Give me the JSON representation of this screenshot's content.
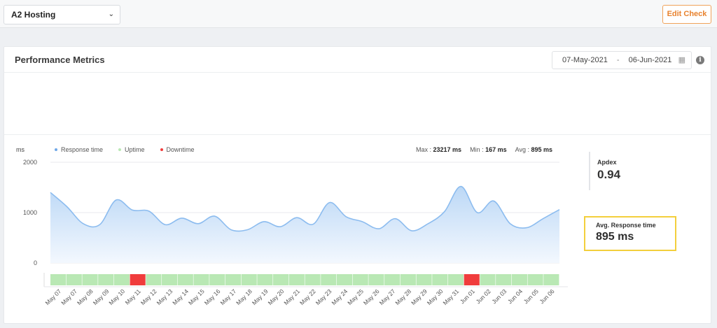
{
  "topbar": {
    "site_select": {
      "value": "A2 Hosting",
      "icon": "chevron-down-icon"
    },
    "edit_check_label": "Edit Check"
  },
  "card": {
    "title": "Performance Metrics",
    "date_range": {
      "start": "07-May-2021",
      "separator": "-",
      "end": "06-Jun-2021"
    }
  },
  "legend": {
    "units": "ms",
    "items": [
      {
        "label": "Response time",
        "color": "#6fa8e8"
      },
      {
        "label": "Uptime",
        "color": "#b9e8b4"
      },
      {
        "label": "Downtime",
        "color": "#f03c3c"
      }
    ]
  },
  "stats": {
    "max_label": "Max :",
    "max_value": "23217 ms",
    "min_label": "Min :",
    "min_value": "167 ms",
    "avg_label": "Avg :",
    "avg_value": "895 ms"
  },
  "side": {
    "apdex_label": "Apdex",
    "apdex_value": "0.94",
    "avg_label": "Avg. Response time",
    "avg_value": "895 ms"
  },
  "chart_data": {
    "type": "area",
    "ylim": [
      0,
      2000
    ],
    "yticks": [
      0,
      1000,
      2000
    ],
    "categories": [
      "May 07",
      "May 07",
      "May 08",
      "May 09",
      "May 10",
      "May 11",
      "May 12",
      "May 13",
      "May 14",
      "May 15",
      "May 16",
      "May 17",
      "May 18",
      "May 19",
      "May 20",
      "May 21",
      "May 22",
      "May 23",
      "May 24",
      "May 25",
      "May 26",
      "May 27",
      "May 28",
      "May 29",
      "May 30",
      "May 31",
      "Jun 01",
      "Jun 02",
      "Jun 03",
      "Jun 04",
      "Jun 05",
      "Jun 06"
    ],
    "series": [
      {
        "name": "Response time",
        "values": [
          1400,
          1120,
          780,
          760,
          1250,
          1050,
          1030,
          760,
          890,
          780,
          930,
          660,
          660,
          820,
          720,
          900,
          770,
          1200,
          920,
          820,
          680,
          880,
          640,
          780,
          1020,
          1520,
          1000,
          1230,
          780,
          700,
          880,
          1060
        ]
      }
    ],
    "status": [
      "up",
      "up",
      "up",
      "up",
      "up",
      "down",
      "up",
      "up",
      "up",
      "up",
      "up",
      "up",
      "up",
      "up",
      "up",
      "up",
      "up",
      "up",
      "up",
      "up",
      "up",
      "up",
      "up",
      "up",
      "up",
      "up",
      "down",
      "up",
      "up",
      "up",
      "up",
      "up"
    ],
    "colors": {
      "line": "#8cbcef",
      "fill_top": "#bcd8f6",
      "fill_bottom": "#f3f8fe",
      "up": "#b9e8b4",
      "down": "#f03c3c",
      "grid": "#e8eaed",
      "axis": "#555555"
    }
  }
}
